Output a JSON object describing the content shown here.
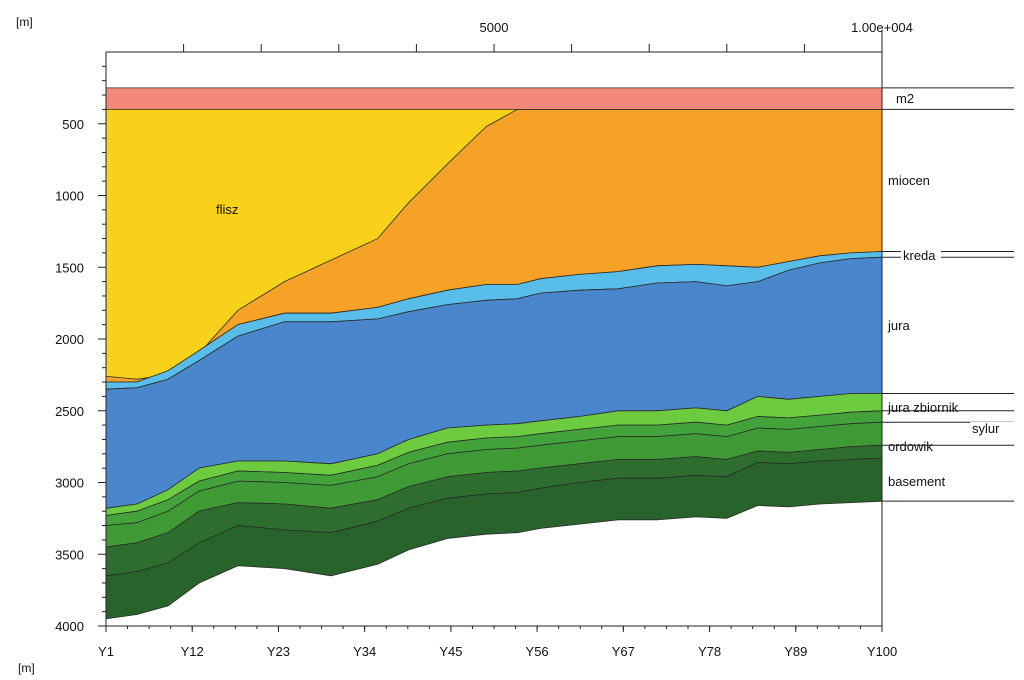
{
  "chart_data": {
    "type": "area",
    "units": {
      "top_left": "[m]",
      "bottom_left": "[m]"
    },
    "x_top_ticks": [
      {
        "x": 5000,
        "label": "5000"
      },
      {
        "x": 10000,
        "label": "1.00e+004"
      }
    ],
    "x_bottom_ticks": [
      "Y1",
      "Y12",
      "Y23",
      "Y34",
      "Y45",
      "Y56",
      "Y67",
      "Y78",
      "Y89",
      "Y100"
    ],
    "y_ticks": [
      {
        "value": 500,
        "label": "500"
      },
      {
        "value": 1000,
        "label": "1000"
      },
      {
        "value": 1500,
        "label": "1500"
      },
      {
        "value": 2000,
        "label": "2000"
      },
      {
        "value": 2500,
        "label": "2500"
      },
      {
        "value": 3000,
        "label": "3000"
      },
      {
        "value": 3500,
        "label": "3500"
      },
      {
        "value": 4000,
        "label": "4000"
      }
    ],
    "x_range": [
      0,
      10000
    ],
    "y_range": [
      0,
      4000
    ],
    "y_inverted": true,
    "labels": {
      "flisz": "flisz",
      "m2": "m2",
      "miocen": "miocen",
      "kreda": "kreda",
      "jura": "jura",
      "jura_zbiornik": "jura zbiornik",
      "sylur": "sylur",
      "ordowik": "ordowik",
      "basement": "basement"
    },
    "colors": {
      "m2": "#f2877a",
      "flisz": "#f8d21a",
      "miocen": "#f5a227",
      "kreda": "#58bde8",
      "jura": "#4a86cc",
      "jura_zbiornik": "#6ccb3e",
      "sylur": "#43a33a",
      "ordowik": "#3f9a35",
      "basement": "#2d6e2f",
      "basement_deep": "#27632a"
    },
    "horizons": {
      "x": [
        0,
        400,
        800,
        1200,
        1700,
        2300,
        2900,
        3500,
        3900,
        4400,
        4900,
        5300,
        5600,
        6100,
        6600,
        7100,
        7600,
        8000,
        8400,
        8800,
        9200,
        9600,
        10000
      ],
      "top_m2": [
        250,
        250,
        250,
        250,
        250,
        250,
        250,
        250,
        250,
        250,
        250,
        250,
        250,
        250,
        250,
        250,
        250,
        250,
        250,
        250,
        250,
        250,
        250
      ],
      "top_miocen_flisz": [
        400,
        400,
        400,
        400,
        400,
        400,
        400,
        400,
        400,
        400,
        400,
        400,
        400,
        400,
        400,
        400,
        400,
        400,
        400,
        400,
        400,
        400,
        400
      ],
      "top_flisz_base_on": [
        2260,
        2280,
        2250,
        2100,
        1800,
        1600,
        1450,
        1300,
        1050,
        780,
        520,
        400,
        400,
        400,
        400,
        400,
        400,
        400,
        400,
        400,
        400,
        400,
        400
      ],
      "top_kreda": [
        2300,
        2300,
        2220,
        2080,
        1900,
        1820,
        1820,
        1780,
        1720,
        1660,
        1620,
        1620,
        1580,
        1550,
        1530,
        1490,
        1480,
        1490,
        1500,
        1460,
        1420,
        1400,
        1390
      ],
      "top_jura": [
        2350,
        2340,
        2280,
        2150,
        1980,
        1880,
        1880,
        1860,
        1810,
        1760,
        1730,
        1720,
        1680,
        1660,
        1650,
        1610,
        1600,
        1630,
        1600,
        1520,
        1470,
        1440,
        1430
      ],
      "top_jura_zbiornik": [
        3180,
        3150,
        3050,
        2900,
        2850,
        2850,
        2870,
        2800,
        2700,
        2620,
        2600,
        2590,
        2570,
        2540,
        2500,
        2500,
        2480,
        2500,
        2400,
        2420,
        2400,
        2380,
        2380
      ],
      "top_sylur": [
        3230,
        3200,
        3120,
        2990,
        2920,
        2930,
        2950,
        2880,
        2790,
        2720,
        2690,
        2680,
        2660,
        2630,
        2600,
        2600,
        2580,
        2600,
        2540,
        2550,
        2530,
        2510,
        2500
      ],
      "top_ordowik": [
        3300,
        3280,
        3200,
        3060,
        2990,
        3000,
        3020,
        2960,
        2870,
        2800,
        2770,
        2760,
        2740,
        2710,
        2680,
        2680,
        2660,
        2680,
        2620,
        2630,
        2610,
        2590,
        2580
      ],
      "top_basement": [
        3450,
        3420,
        3350,
        3200,
        3140,
        3150,
        3180,
        3120,
        3030,
        2960,
        2930,
        2920,
        2900,
        2870,
        2840,
        2840,
        2820,
        2840,
        2780,
        2790,
        2770,
        2750,
        2740
      ],
      "mid_basement": [
        3650,
        3620,
        3560,
        3420,
        3300,
        3330,
        3350,
        3270,
        3180,
        3110,
        3080,
        3070,
        3040,
        3000,
        2970,
        2970,
        2950,
        2960,
        2860,
        2870,
        2850,
        2840,
        2830
      ],
      "bottom": [
        3950,
        3920,
        3860,
        3700,
        3580,
        3600,
        3650,
        3570,
        3470,
        3390,
        3360,
        3350,
        3320,
        3290,
        3260,
        3260,
        3240,
        3250,
        3160,
        3170,
        3150,
        3140,
        3130
      ]
    }
  }
}
